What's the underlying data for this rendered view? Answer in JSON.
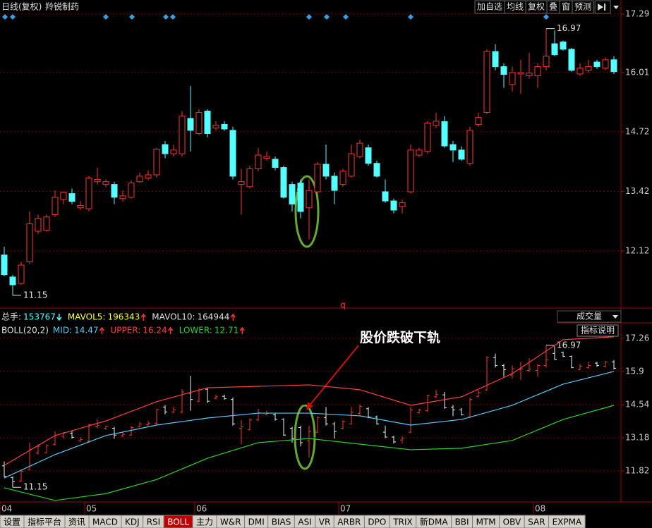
{
  "chart_data": [
    {
      "type": "candlestick",
      "title": "日线(复权)",
      "subtitle": "羚锐制药",
      "toolbar": [
        "加自选",
        "均线",
        "复权",
        "叠",
        "窗",
        "预测"
      ],
      "marker_text": "q",
      "up_color": "#ff3232",
      "down_color": "#54ffff",
      "ylim": [
        10.98,
        17.41
      ],
      "yticks": [
        17.29,
        16.01,
        14.72,
        13.42,
        12.12
      ],
      "grid": true,
      "categories": [
        "04",
        null,
        null,
        null,
        null,
        null,
        null,
        null,
        null,
        null,
        "05",
        null,
        null,
        null,
        null,
        null,
        null,
        null,
        null,
        null,
        null,
        null,
        null,
        "06",
        null,
        null,
        null,
        null,
        null,
        null,
        null,
        null,
        null,
        null,
        null,
        null,
        null,
        null,
        null,
        null,
        "07",
        null,
        null,
        null,
        null,
        null,
        null,
        null,
        null,
        null,
        null,
        null,
        null,
        null,
        null,
        null,
        null,
        null,
        null,
        null,
        null,
        null,
        null,
        "08",
        null,
        null,
        null,
        null,
        null,
        null,
        null,
        null,
        null
      ],
      "ohlc": [
        [
          12.03,
          12.21,
          11.57,
          11.6
        ],
        [
          11.55,
          11.6,
          11.15,
          11.38
        ],
        [
          11.41,
          11.88,
          11.38,
          11.81
        ],
        [
          11.88,
          12.98,
          11.84,
          12.71
        ],
        [
          12.55,
          12.91,
          12.49,
          12.83
        ],
        [
          12.57,
          12.91,
          12.54,
          12.86
        ],
        [
          12.91,
          13.44,
          12.86,
          13.29
        ],
        [
          13.24,
          13.41,
          13.14,
          13.4
        ],
        [
          13.37,
          13.48,
          13.14,
          13.2
        ],
        [
          13.06,
          13.21,
          13.01,
          13.11
        ],
        [
          13.04,
          13.75,
          12.98,
          13.71
        ],
        [
          13.63,
          13.94,
          13.57,
          13.68
        ],
        [
          13.57,
          13.68,
          13.51,
          13.63
        ],
        [
          13.57,
          13.63,
          13.14,
          13.29
        ],
        [
          13.26,
          13.44,
          13.2,
          13.32
        ],
        [
          13.29,
          13.66,
          13.26,
          13.6
        ],
        [
          13.63,
          13.83,
          13.6,
          13.75
        ],
        [
          13.71,
          13.88,
          13.66,
          13.78
        ],
        [
          13.78,
          14.37,
          13.72,
          14.34
        ],
        [
          14.44,
          14.52,
          14.14,
          14.24
        ],
        [
          14.24,
          14.44,
          14.18,
          14.32
        ],
        [
          14.24,
          15.17,
          14.18,
          15.06
        ],
        [
          15.01,
          15.72,
          14.29,
          14.75
        ],
        [
          14.68,
          15.21,
          14.64,
          15.14
        ],
        [
          15.17,
          15.21,
          14.6,
          14.68
        ],
        [
          14.8,
          14.95,
          14.75,
          14.86
        ],
        [
          14.88,
          14.95,
          14.74,
          14.78
        ],
        [
          14.75,
          14.83,
          13.68,
          13.75
        ],
        [
          13.57,
          13.91,
          12.91,
          13.63
        ],
        [
          13.52,
          13.98,
          13.48,
          13.91
        ],
        [
          13.91,
          14.37,
          13.86,
          14.21
        ],
        [
          14.14,
          14.29,
          14.09,
          14.18
        ],
        [
          14.12,
          14.18,
          13.88,
          13.94
        ],
        [
          13.94,
          13.98,
          13.26,
          13.29
        ],
        [
          13.57,
          13.63,
          12.98,
          13.14
        ],
        [
          13.6,
          13.68,
          12.83,
          12.98
        ],
        [
          13.06,
          13.68,
          12.37,
          13.44
        ],
        [
          13.41,
          14.06,
          13.37,
          14.01
        ],
        [
          14.01,
          14.44,
          13.68,
          13.75
        ],
        [
          13.75,
          13.83,
          13.14,
          13.44
        ],
        [
          13.57,
          13.91,
          13.52,
          13.86
        ],
        [
          13.75,
          14.44,
          13.72,
          14.24
        ],
        [
          14.18,
          14.55,
          14.14,
          14.47
        ],
        [
          14.37,
          14.44,
          13.98,
          14.03
        ],
        [
          14.03,
          14.09,
          13.72,
          13.75
        ],
        [
          13.41,
          13.68,
          13.17,
          13.21
        ],
        [
          13.21,
          13.26,
          12.94,
          13.01
        ],
        [
          13.09,
          13.24,
          12.94,
          13.17
        ],
        [
          13.41,
          14.44,
          13.37,
          14.32
        ],
        [
          14.21,
          14.37,
          14.17,
          14.32
        ],
        [
          14.29,
          14.95,
          14.24,
          14.91
        ],
        [
          14.86,
          15.14,
          14.8,
          14.95
        ],
        [
          14.94,
          15.06,
          14.37,
          14.41
        ],
        [
          14.44,
          14.52,
          14.06,
          14.32
        ],
        [
          14.32,
          14.4,
          14.09,
          14.12
        ],
        [
          14.03,
          14.83,
          13.98,
          14.75
        ],
        [
          14.88,
          15.14,
          14.83,
          15.03
        ],
        [
          15.14,
          16.52,
          15.11,
          16.47
        ],
        [
          16.47,
          16.63,
          16.06,
          16.14
        ],
        [
          16.14,
          16.21,
          15.68,
          15.97
        ],
        [
          15.75,
          16.14,
          15.6,
          16.01
        ],
        [
          15.98,
          16.29,
          15.55,
          16.01
        ],
        [
          15.94,
          16.44,
          15.88,
          16.0
        ],
        [
          15.94,
          16.21,
          15.68,
          16.14
        ],
        [
          16.14,
          16.97,
          16.06,
          16.37
        ],
        [
          16.64,
          16.93,
          16.37,
          16.4
        ],
        [
          16.68,
          16.71,
          16.49,
          16.52
        ],
        [
          16.52,
          16.55,
          16.03,
          16.06
        ],
        [
          15.98,
          16.21,
          15.94,
          16.11
        ],
        [
          16.06,
          16.29,
          16.01,
          16.14
        ],
        [
          16.24,
          16.29,
          16.09,
          16.14
        ],
        [
          16.11,
          16.34,
          16.06,
          16.29
        ],
        [
          16.29,
          16.37,
          15.98,
          16.03
        ]
      ]
    },
    {
      "type": "boll",
      "indicator_select": "成交量",
      "help_button": "指标说明",
      "volume_legend": [
        {
          "name": "总手:",
          "value": 153767,
          "color": "#54ffff",
          "trend": "down"
        },
        {
          "name": "MAVOL5:",
          "value": 196343,
          "color": "#ffff40",
          "trend": "up"
        },
        {
          "name": "MAVOL10:",
          "value": 164944,
          "color": "#e0e0e0",
          "trend": "up"
        }
      ],
      "indicator_name": "BOLL(20,2)",
      "ylim": [
        10.55,
        17.4
      ],
      "yticks": [
        17.26,
        15.9,
        14.54,
        13.18,
        11.82
      ],
      "grid": true,
      "series": [
        {
          "name": "MID:",
          "current": 14.47,
          "trend": "up",
          "color": "#5ec8f0",
          "x": [
            0,
            6,
            12,
            18,
            24,
            30,
            36,
            42,
            48,
            54,
            60,
            66,
            72
          ],
          "values": [
            11.53,
            12.49,
            13.27,
            13.7,
            13.99,
            14.19,
            14.19,
            14.08,
            13.7,
            13.93,
            14.51,
            15.38,
            15.9
          ]
        },
        {
          "name": "UPPER:",
          "current": 16.24,
          "trend": "up",
          "color": "#ff4040",
          "x": [
            0,
            6,
            12,
            18,
            24,
            30,
            36,
            42,
            48,
            54,
            60,
            66,
            72
          ],
          "values": [
            12.05,
            13.27,
            13.87,
            14.66,
            15.23,
            15.29,
            15.35,
            15.15,
            14.51,
            14.86,
            15.81,
            17.2,
            17.32
          ]
        },
        {
          "name": "LOWER:",
          "current": 12.71,
          "trend": "up",
          "color": "#30d030",
          "x": [
            0,
            6,
            12,
            18,
            24,
            30,
            36,
            42,
            48,
            54,
            60,
            66,
            72
          ],
          "values": [
            11.13,
            10.61,
            10.89,
            11.47,
            12.34,
            12.98,
            13.15,
            12.92,
            12.69,
            12.75,
            13.07,
            13.93,
            14.51
          ]
        }
      ],
      "annotation": "股价跌破下轨"
    },
    {
      "type": "tabs",
      "tabs": [
        "设置",
        "指标平台",
        "资讯",
        "MACD",
        "KDJ",
        "RSI",
        "BOLL",
        "主力",
        "W&R",
        "DMI",
        "BIAS",
        "ASI",
        "VR",
        "ARBR",
        "DPO",
        "TRIX",
        "新DMA",
        "BBI",
        "MTM",
        "OBV",
        "SAR",
        "EXPMA"
      ],
      "active_tab": 6
    }
  ]
}
